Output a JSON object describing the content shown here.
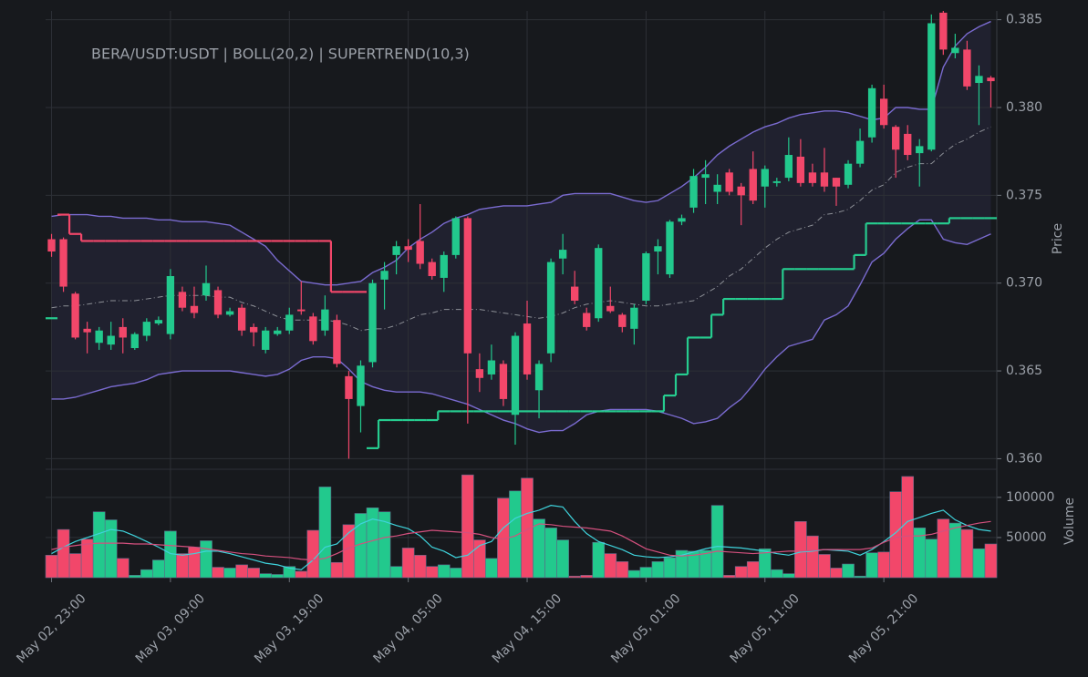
{
  "chart_data": [
    {
      "type": "candlestick",
      "title": "BERA/USDT:USDT | BOLL(20,2) | SUPERTREND(10,3)",
      "ylabel": "Price",
      "up_color": "#22c98d",
      "down_color": "#f2476a",
      "ylim": [
        0.3594,
        0.3855
      ],
      "yticks": [
        {
          "value": 0.36,
          "label": "0.360"
        },
        {
          "value": 0.365,
          "label": "0.365"
        },
        {
          "value": 0.37,
          "label": "0.370"
        },
        {
          "value": 0.375,
          "label": "0.375"
        },
        {
          "value": 0.38,
          "label": "0.380"
        },
        {
          "value": 0.385,
          "label": "0.385"
        }
      ],
      "grid": true,
      "open": [
        0.3725,
        0.3725,
        0.3694,
        0.3674,
        0.3666,
        0.3665,
        0.3675,
        0.3663,
        0.367,
        0.3677,
        0.3671,
        0.3695,
        0.3687,
        0.3693,
        0.3696,
        0.3682,
        0.3686,
        0.3675,
        0.3662,
        0.3671,
        0.3673,
        0.3685,
        0.3681,
        0.3673,
        0.3679,
        0.3647,
        0.363,
        0.3655,
        0.3702,
        0.3716,
        0.3721,
        0.3724,
        0.3712,
        0.3703,
        0.3716,
        0.3737,
        0.3651,
        0.3648,
        0.3654,
        0.3625,
        0.3677,
        0.3639,
        0.366,
        0.3714,
        0.3698,
        0.3683,
        0.368,
        0.3687,
        0.3682,
        0.3674,
        0.369,
        0.3718,
        0.3705,
        0.3735,
        0.3743,
        0.376,
        0.3752,
        0.3763,
        0.3755,
        0.3765,
        0.3755,
        0.3757,
        0.376,
        0.3772,
        0.3763,
        0.3763,
        0.376,
        0.3756,
        0.3768,
        0.3783,
        0.3805,
        0.3789,
        0.3785,
        0.3774,
        0.3776,
        0.3854,
        0.3831,
        0.3833,
        0.3814,
        0.3817
      ],
      "high": [
        0.3728,
        0.3726,
        0.3695,
        0.3678,
        0.3675,
        0.3678,
        0.368,
        0.3672,
        0.368,
        0.3681,
        0.3708,
        0.3698,
        0.3698,
        0.371,
        0.3698,
        0.3686,
        0.3688,
        0.3677,
        0.3675,
        0.3675,
        0.3686,
        0.3701,
        0.3683,
        0.3693,
        0.3682,
        0.365,
        0.3656,
        0.3702,
        0.3712,
        0.3724,
        0.3725,
        0.3745,
        0.3714,
        0.3718,
        0.3738,
        0.3738,
        0.366,
        0.3665,
        0.3656,
        0.3672,
        0.369,
        0.3656,
        0.3714,
        0.3728,
        0.3707,
        0.3686,
        0.3722,
        0.3698,
        0.3683,
        0.3688,
        0.3718,
        0.3725,
        0.3736,
        0.3739,
        0.3765,
        0.377,
        0.3762,
        0.3765,
        0.3757,
        0.3775,
        0.3767,
        0.376,
        0.3783,
        0.3782,
        0.3768,
        0.3777,
        0.376,
        0.377,
        0.3788,
        0.3813,
        0.3813,
        0.379,
        0.379,
        0.3782,
        0.3853,
        0.3855,
        0.3842,
        0.3838,
        0.3824,
        0.3818
      ],
      "low": [
        0.3715,
        0.3695,
        0.3668,
        0.366,
        0.3662,
        0.3662,
        0.366,
        0.3662,
        0.3667,
        0.3676,
        0.3668,
        0.3684,
        0.368,
        0.369,
        0.368,
        0.3681,
        0.367,
        0.3664,
        0.366,
        0.367,
        0.3671,
        0.3682,
        0.3665,
        0.367,
        0.3652,
        0.36,
        0.3615,
        0.3652,
        0.3685,
        0.3705,
        0.3712,
        0.3708,
        0.3702,
        0.3695,
        0.3714,
        0.362,
        0.3638,
        0.3645,
        0.363,
        0.3608,
        0.3645,
        0.3623,
        0.3655,
        0.3705,
        0.3688,
        0.3673,
        0.3678,
        0.3683,
        0.3672,
        0.3665,
        0.3688,
        0.3705,
        0.3703,
        0.3733,
        0.374,
        0.3745,
        0.3745,
        0.375,
        0.3733,
        0.3745,
        0.3743,
        0.3755,
        0.3758,
        0.3755,
        0.3755,
        0.3752,
        0.3744,
        0.3754,
        0.3766,
        0.378,
        0.3788,
        0.376,
        0.377,
        0.3755,
        0.3775,
        0.383,
        0.3828,
        0.381,
        0.379,
        0.38
      ],
      "close": [
        0.3718,
        0.3698,
        0.3669,
        0.3672,
        0.3673,
        0.367,
        0.3669,
        0.3671,
        0.3678,
        0.3679,
        0.3704,
        0.3686,
        0.3683,
        0.37,
        0.3682,
        0.3684,
        0.3673,
        0.3672,
        0.3673,
        0.3673,
        0.3682,
        0.3684,
        0.3667,
        0.3685,
        0.3654,
        0.3634,
        0.3653,
        0.37,
        0.3707,
        0.3721,
        0.3719,
        0.3711,
        0.3704,
        0.3716,
        0.3737,
        0.366,
        0.3646,
        0.3656,
        0.3634,
        0.367,
        0.3648,
        0.3654,
        0.3712,
        0.3719,
        0.369,
        0.3675,
        0.372,
        0.3684,
        0.3675,
        0.3686,
        0.3717,
        0.3721,
        0.3735,
        0.3737,
        0.3761,
        0.3762,
        0.3756,
        0.3752,
        0.375,
        0.3747,
        0.3765,
        0.3758,
        0.3773,
        0.3757,
        0.3757,
        0.3755,
        0.3755,
        0.3768,
        0.3781,
        0.3811,
        0.379,
        0.3776,
        0.3773,
        0.3778,
        0.3848,
        0.3833,
        0.3834,
        0.3812,
        0.3818,
        0.3815
      ],
      "bands": {
        "color": "#7a6bd0",
        "fill": "rgba(122,107,208,0.10)",
        "mid_color": "#8c8f96",
        "upper": [
          0.3738,
          0.3739,
          0.3739,
          0.3739,
          0.3738,
          0.3738,
          0.3737,
          0.3737,
          0.3737,
          0.3736,
          0.3736,
          0.3735,
          0.3735,
          0.3735,
          0.3734,
          0.3733,
          0.3729,
          0.3725,
          0.3721,
          0.3713,
          0.3707,
          0.3701,
          0.37,
          0.3699,
          0.3699,
          0.37,
          0.3701,
          0.3706,
          0.3709,
          0.3713,
          0.372,
          0.3725,
          0.3729,
          0.3734,
          0.3737,
          0.3739,
          0.3742,
          0.3743,
          0.3744,
          0.3744,
          0.3744,
          0.3745,
          0.3746,
          0.375,
          0.3751,
          0.3751,
          0.3751,
          0.3751,
          0.3749,
          0.3747,
          0.3746,
          0.3747,
          0.3751,
          0.3755,
          0.376,
          0.3766,
          0.3773,
          0.3778,
          0.3782,
          0.3786,
          0.3789,
          0.3791,
          0.3794,
          0.3796,
          0.3797,
          0.3798,
          0.3798,
          0.3797,
          0.3795,
          0.3793,
          0.3794,
          0.38,
          0.38,
          0.3799,
          0.3799,
          0.3823,
          0.3835,
          0.3842,
          0.3846,
          0.3849
        ],
        "middle": [
          0.3686,
          0.3687,
          0.3687,
          0.3688,
          0.3689,
          0.369,
          0.369,
          0.369,
          0.3691,
          0.3692,
          0.3693,
          0.3693,
          0.3693,
          0.3693,
          0.3692,
          0.3692,
          0.3689,
          0.3687,
          0.3684,
          0.3681,
          0.3679,
          0.3679,
          0.3679,
          0.3679,
          0.3678,
          0.3676,
          0.3673,
          0.3674,
          0.3674,
          0.3676,
          0.3679,
          0.3682,
          0.3683,
          0.3685,
          0.3685,
          0.3685,
          0.3685,
          0.3684,
          0.3683,
          0.3682,
          0.3681,
          0.368,
          0.3681,
          0.3683,
          0.3686,
          0.3688,
          0.3689,
          0.369,
          0.3689,
          0.3688,
          0.3687,
          0.3687,
          0.3688,
          0.3689,
          0.369,
          0.3694,
          0.3698,
          0.3704,
          0.3708,
          0.3714,
          0.372,
          0.3725,
          0.3729,
          0.3731,
          0.3733,
          0.3739,
          0.374,
          0.3742,
          0.3747,
          0.3753,
          0.3756,
          0.3763,
          0.3766,
          0.3768,
          0.3768,
          0.3774,
          0.3779,
          0.3782,
          0.3786,
          0.3789
        ],
        "lower": [
          0.3634,
          0.3634,
          0.3635,
          0.3637,
          0.3639,
          0.3641,
          0.3642,
          0.3643,
          0.3645,
          0.3648,
          0.3649,
          0.365,
          0.365,
          0.365,
          0.365,
          0.365,
          0.3649,
          0.3648,
          0.3647,
          0.3648,
          0.3651,
          0.3656,
          0.3658,
          0.3658,
          0.3657,
          0.3651,
          0.3644,
          0.3641,
          0.3639,
          0.3638,
          0.3638,
          0.3638,
          0.3637,
          0.3635,
          0.3633,
          0.3631,
          0.3628,
          0.3625,
          0.3622,
          0.362,
          0.3617,
          0.3615,
          0.3616,
          0.3616,
          0.362,
          0.3625,
          0.3627,
          0.3628,
          0.3628,
          0.3628,
          0.3628,
          0.3627,
          0.3625,
          0.3623,
          0.362,
          0.3621,
          0.3623,
          0.3629,
          0.3634,
          0.3642,
          0.3651,
          0.3658,
          0.3664,
          0.3666,
          0.3668,
          0.3679,
          0.3682,
          0.3687,
          0.3699,
          0.3712,
          0.3717,
          0.3725,
          0.3731,
          0.3736,
          0.3736,
          0.3725,
          0.3723,
          0.3722,
          0.3725,
          0.3728
        ]
      },
      "supertrend": [
        {
          "color": "#f2476a",
          "values": [
            null,
            0.3739,
            0.3728,
            0.3724,
            0.3724,
            0.3724,
            0.3724,
            0.3724,
            0.3724,
            0.3724,
            0.3724,
            0.3724,
            0.3724,
            0.3724,
            0.3724,
            0.3724,
            0.3724,
            0.3724,
            0.3724,
            0.3724,
            0.3724,
            0.3724,
            0.3724,
            0.3724,
            0.3695,
            0.3695,
            0.3695,
            null,
            null,
            null,
            null,
            null,
            null,
            null,
            null,
            null,
            null,
            null,
            null,
            null,
            null,
            null,
            null,
            null,
            null,
            null,
            null,
            null,
            null,
            null,
            null,
            null,
            null,
            null,
            null,
            null,
            null,
            null,
            null,
            null,
            null,
            null,
            null,
            null,
            null,
            null,
            null,
            null,
            null,
            null,
            null,
            null,
            null,
            null,
            null,
            null,
            null,
            null,
            null,
            null
          ]
        },
        {
          "color": "#26cc8f",
          "values": [
            0.368,
            null,
            null,
            null,
            null,
            null,
            null,
            null,
            null,
            null,
            null,
            null,
            null,
            null,
            null,
            null,
            null,
            null,
            null,
            null,
            null,
            null,
            null,
            null,
            null,
            null,
            null,
            0.3606,
            0.3622,
            0.3622,
            0.3622,
            0.3622,
            0.3622,
            0.3627,
            0.3627,
            0.3627,
            0.3627,
            0.3627,
            0.3627,
            0.3627,
            0.3627,
            0.3627,
            0.3627,
            0.3627,
            0.3627,
            0.3627,
            0.3627,
            0.3627,
            0.3627,
            0.3627,
            0.3627,
            0.3627,
            0.3636,
            0.3648,
            0.3669,
            0.3669,
            0.3682,
            0.3691,
            0.3691,
            0.3691,
            0.3691,
            0.3691,
            0.3708,
            0.3708,
            0.3708,
            0.3708,
            0.3708,
            0.3708,
            0.3716,
            0.3734,
            0.3734,
            0.3734,
            0.3734,
            0.3734,
            0.3734,
            0.3734,
            0.3737,
            0.3737,
            0.3737,
            0.3737
          ]
        }
      ]
    },
    {
      "type": "bar",
      "ylabel": "Volume",
      "ylim": [
        0,
        135000
      ],
      "yticks": [
        50000,
        100000
      ],
      "grid": true,
      "categories": [
        "May 02, 23:00",
        null,
        null,
        null,
        null,
        null,
        null,
        null,
        null,
        null,
        "May 03, 09:00",
        null,
        null,
        null,
        null,
        null,
        null,
        null,
        null,
        null,
        "May 03, 19:00",
        null,
        null,
        null,
        null,
        null,
        null,
        null,
        null,
        null,
        "May 04, 05:00",
        null,
        null,
        null,
        null,
        null,
        null,
        null,
        null,
        null,
        "May 04, 15:00",
        null,
        null,
        null,
        null,
        null,
        null,
        null,
        null,
        null,
        "May 05, 01:00",
        null,
        null,
        null,
        null,
        null,
        null,
        null,
        null,
        null,
        "May 05, 11:00",
        null,
        null,
        null,
        null,
        null,
        null,
        null,
        null,
        null,
        "May 05, 21:00",
        null,
        null,
        null,
        null,
        null,
        null,
        null,
        null,
        null
      ],
      "values": [
        28000,
        60000,
        30000,
        48000,
        82000,
        72000,
        24000,
        3000,
        10000,
        22000,
        58000,
        30000,
        38000,
        46000,
        13000,
        12000,
        16000,
        12000,
        5000,
        4000,
        14000,
        8000,
        59000,
        113000,
        19000,
        66000,
        80000,
        87000,
        82000,
        14000,
        37000,
        28000,
        14000,
        16000,
        12000,
        128000,
        47000,
        24000,
        99000,
        108000,
        124000,
        73000,
        62000,
        47000,
        2000,
        3000,
        44000,
        30000,
        20000,
        9000,
        13000,
        20000,
        25000,
        34000,
        33000,
        34000,
        90000,
        3000,
        14000,
        20000,
        36000,
        10000,
        5000,
        70000,
        52000,
        29000,
        12000,
        17000,
        2000,
        31000,
        32000,
        107000,
        126000,
        62000,
        48000,
        73000,
        68000,
        60000,
        36000,
        42000
      ],
      "series": [
        {
          "color": "#3fd3dc",
          "values": [
            30000,
            38000,
            45000,
            50000,
            55000,
            60000,
            58000,
            52000,
            45000,
            38000,
            30000,
            28000,
            30000,
            33000,
            33000,
            30000,
            26000,
            22000,
            18000,
            16000,
            12000,
            10000,
            22000,
            38000,
            42000,
            56000,
            67000,
            73000,
            70000,
            65000,
            61000,
            52000,
            38000,
            33000,
            25000,
            28000,
            40000,
            45000,
            62000,
            74000,
            80000,
            84000,
            90000,
            88000,
            70000,
            55000,
            45000,
            40000,
            35000,
            28000,
            26000,
            25000,
            26000,
            28000,
            32000,
            36000,
            39000,
            38000,
            37000,
            35000,
            33000,
            30000,
            28000,
            32000,
            33000,
            35000,
            34000,
            33000,
            28000,
            35000,
            45000,
            56000,
            70000,
            75000,
            80000,
            84000,
            72000,
            65000,
            60000,
            58000
          ]
        },
        {
          "color": "#d4507e",
          "values": [
            35000,
            38000,
            40000,
            42000,
            43000,
            43000,
            43000,
            42000,
            42000,
            41000,
            40000,
            39000,
            38000,
            36000,
            34000,
            32000,
            30000,
            29000,
            27000,
            26000,
            25000,
            23000,
            22000,
            24000,
            30000,
            37000,
            42000,
            46000,
            50000,
            52000,
            55000,
            57000,
            59000,
            58000,
            57000,
            56000,
            54000,
            50000,
            48000,
            52000,
            60000,
            67000,
            66000,
            64000,
            63000,
            62000,
            60000,
            58000,
            52000,
            44000,
            36000,
            32000,
            28000,
            27000,
            28000,
            30000,
            33000,
            32000,
            31000,
            30000,
            31000,
            32000,
            33000,
            33000,
            34000,
            35000,
            35000,
            35000,
            35000,
            37000,
            44000,
            50000,
            52000,
            52000,
            54000,
            58000,
            62000,
            65000,
            68000,
            70000
          ]
        }
      ]
    }
  ]
}
